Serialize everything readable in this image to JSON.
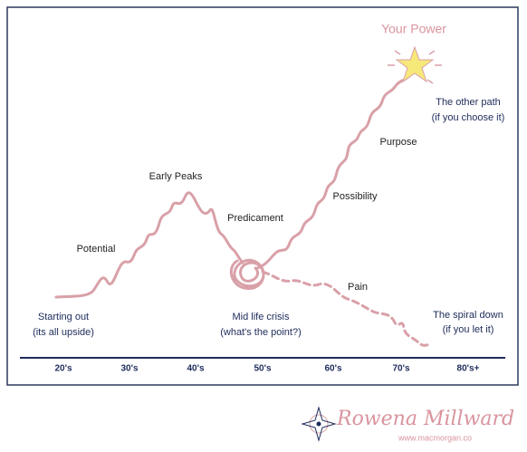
{
  "title": "Your Power",
  "stages": [
    "Potential",
    "Early Peaks",
    "Predicament",
    "Possibility",
    "Purpose",
    "Pain"
  ],
  "notes": {
    "start": [
      "Starting out",
      "(its all upside)"
    ],
    "crisis": [
      "Mid life crisis",
      "(what's the point?)"
    ],
    "other_path": [
      "The other path",
      "(if you choose it)"
    ],
    "spiral": [
      "The spiral down",
      "(if you let it)"
    ]
  },
  "axis": {
    "labels": [
      "20's",
      "30's",
      "40's",
      "50's",
      "60's",
      "70's",
      "80's+"
    ]
  },
  "footer": {
    "name": "Rowena Millward",
    "url": "www.macmorgan.co"
  }
}
